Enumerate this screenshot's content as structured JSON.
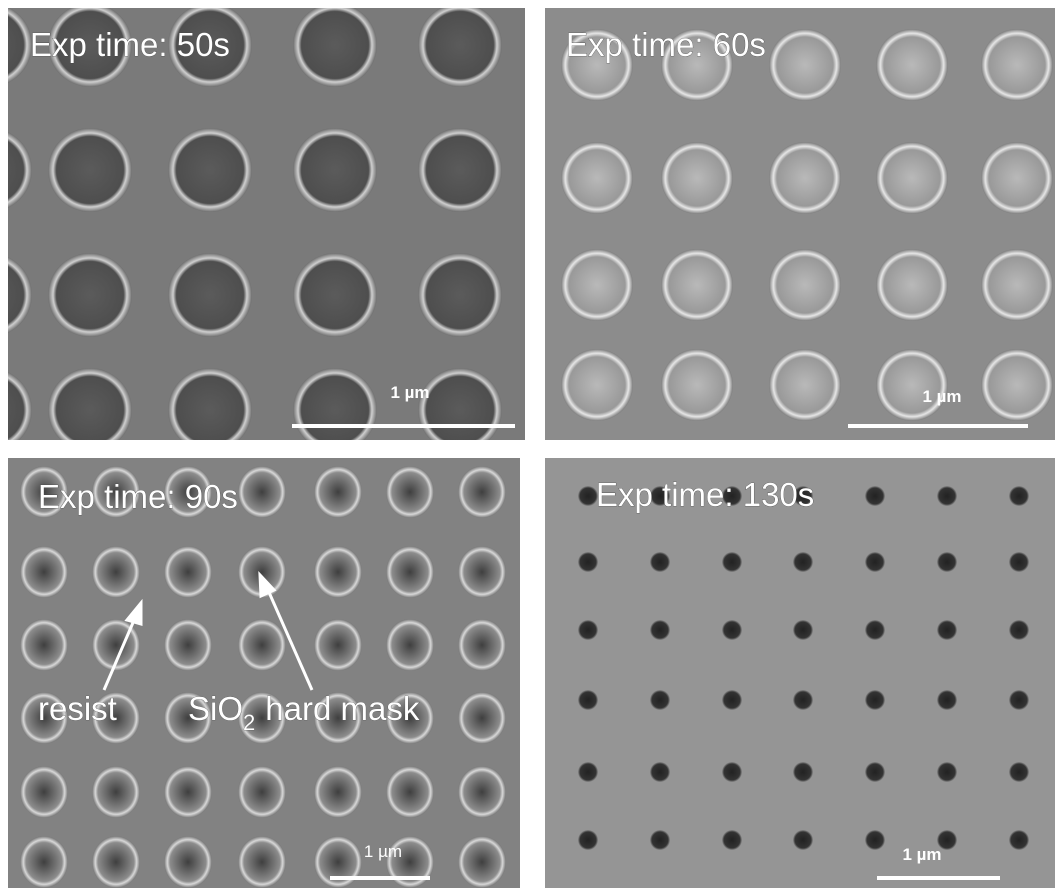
{
  "panels": [
    {
      "label": "Exp time: 50s",
      "scale_bar": "1 µm"
    },
    {
      "label": "Exp time: 60s",
      "scale_bar": "1 µm"
    },
    {
      "label": "Exp time: 90s",
      "scale_bar": "1 µm"
    },
    {
      "label": "Exp time: 130s",
      "scale_bar": "1 µm"
    }
  ],
  "annotations": {
    "resist": "resist",
    "mask_prefix": "SiO",
    "mask_subscript": "2",
    "mask_suffix": "hard mask"
  }
}
